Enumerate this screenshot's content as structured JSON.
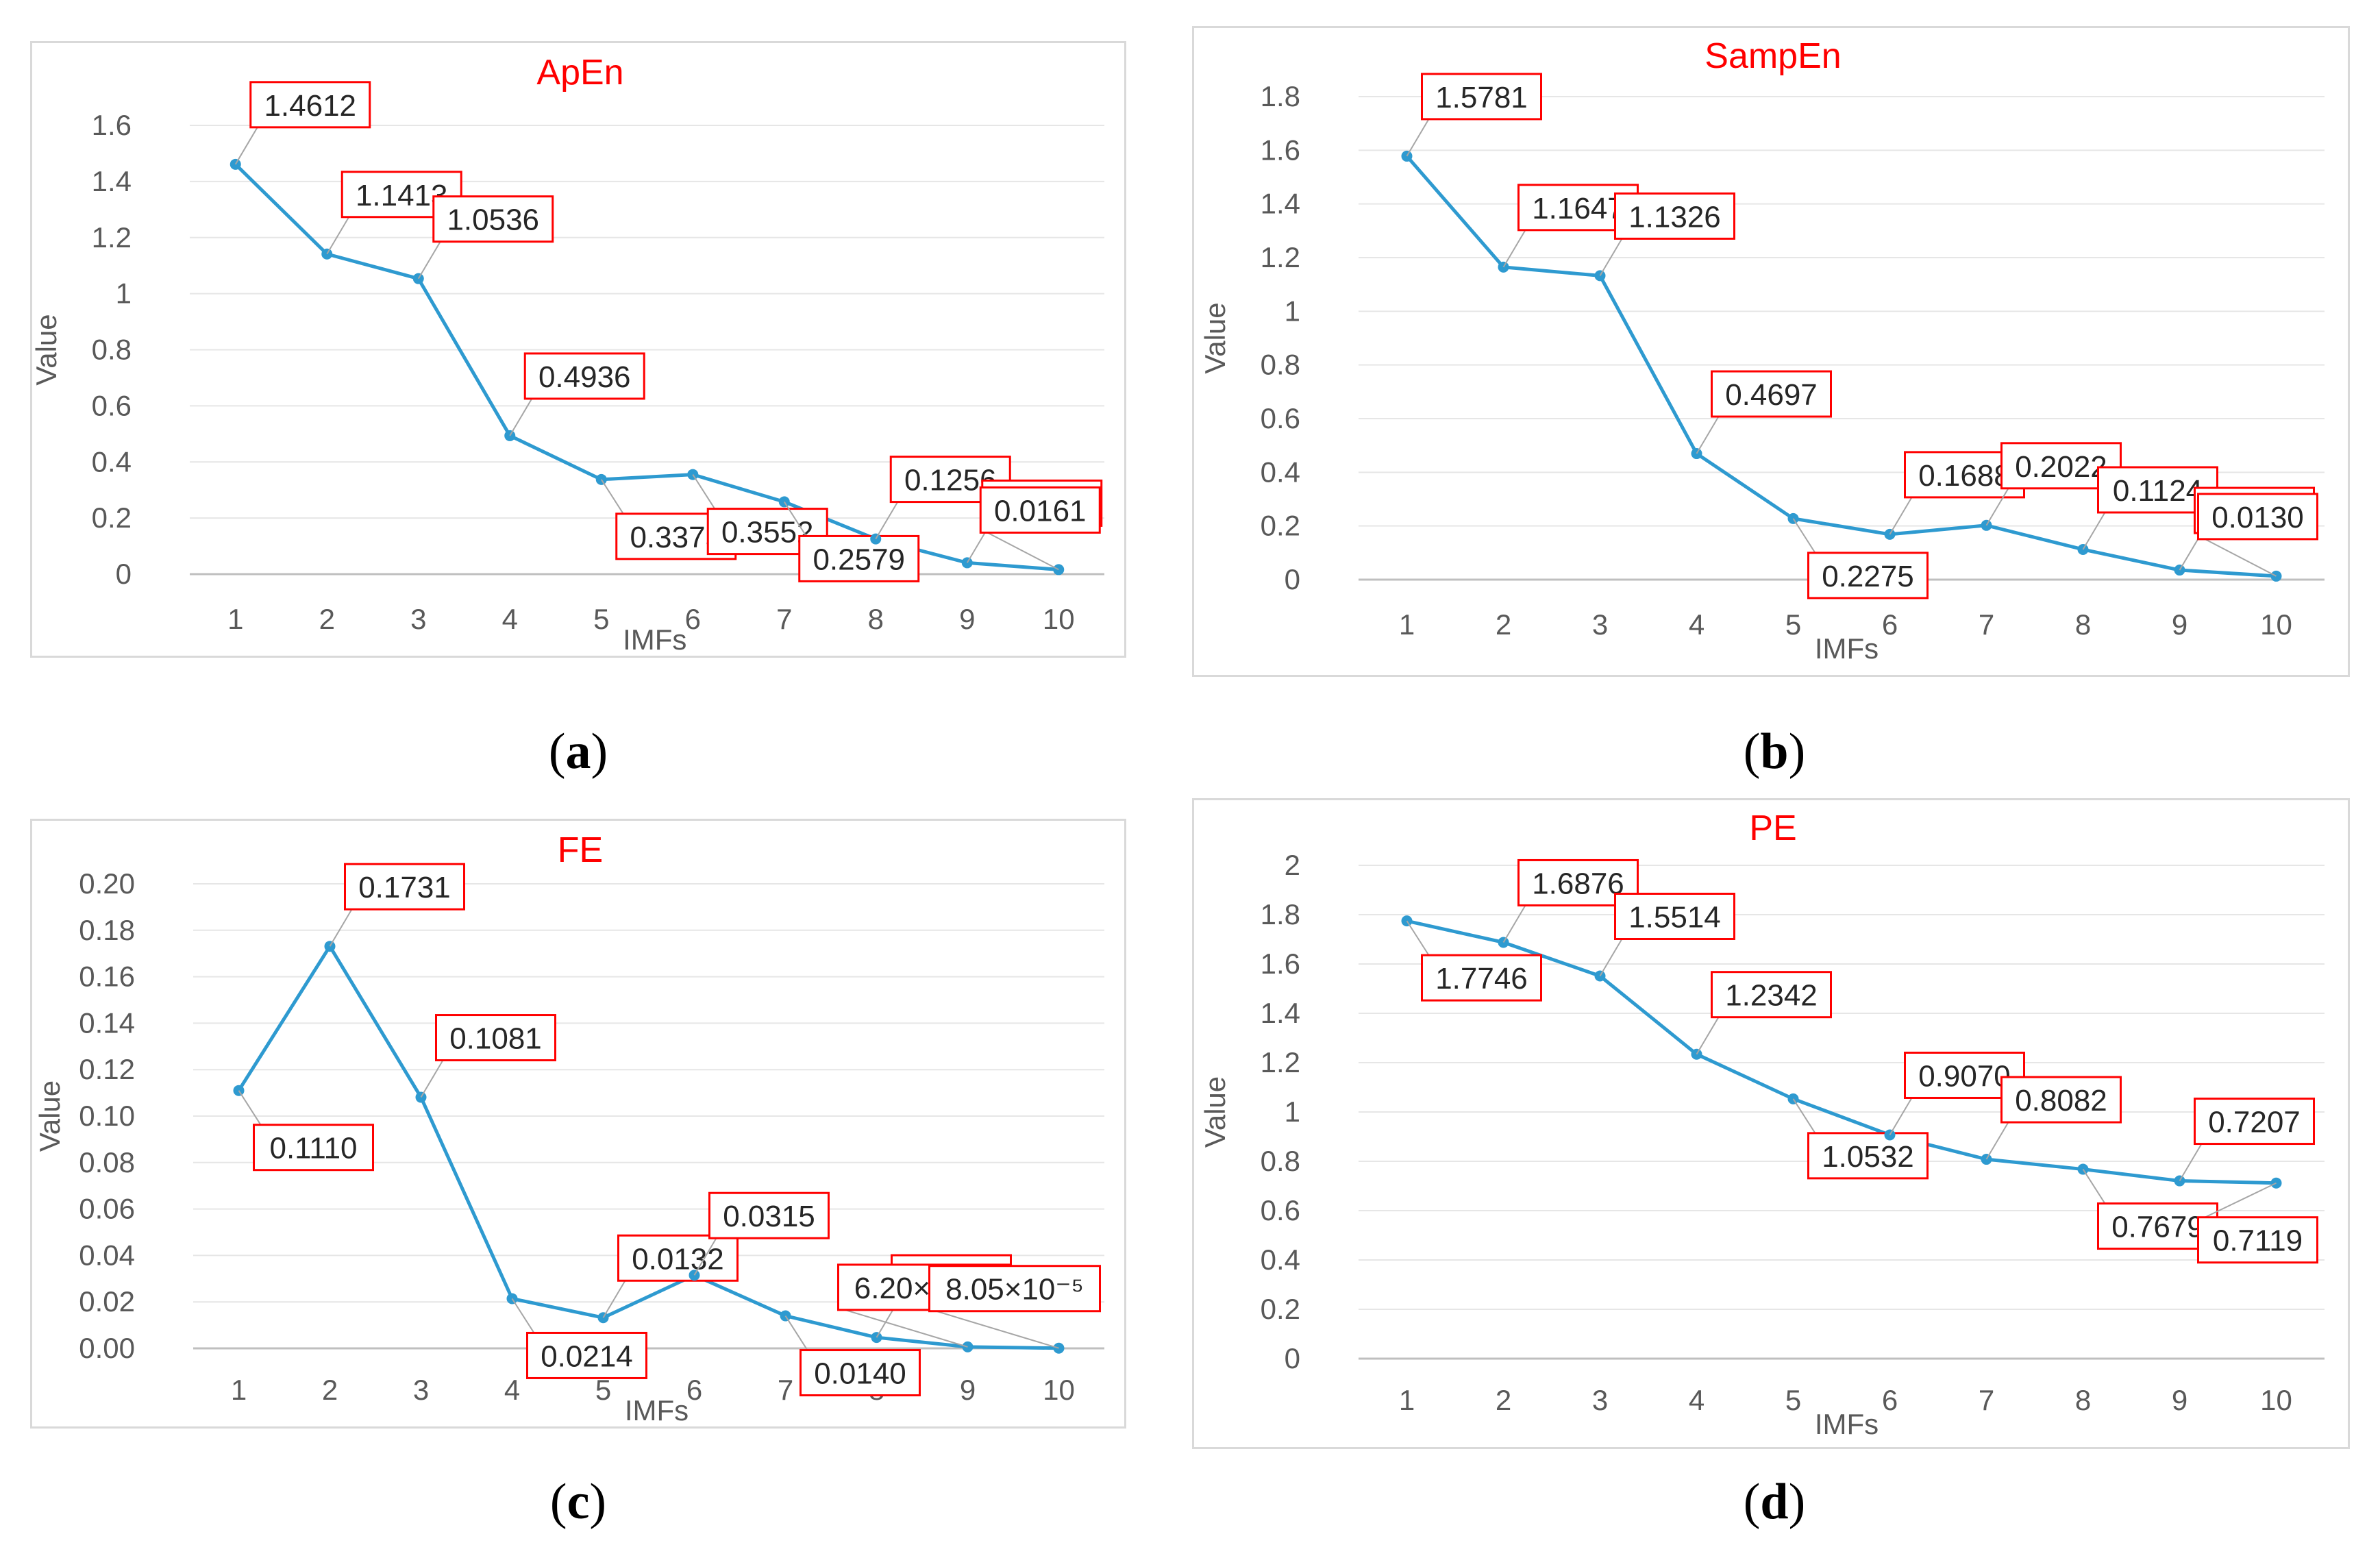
{
  "figure": {
    "captions": [
      "a",
      "b",
      "c",
      "d"
    ]
  },
  "chart_data": [
    {
      "type": "line",
      "title": "ApEn",
      "xlabel": "IMFs",
      "ylabel": "Value",
      "categories": [
        "1",
        "2",
        "3",
        "4",
        "5",
        "6",
        "7",
        "8",
        "9",
        "10"
      ],
      "values": [
        1.4612,
        1.1413,
        1.0536,
        0.4936,
        0.3375,
        0.3552,
        0.2579,
        0.1256,
        0.0405,
        0.0161
      ],
      "data_labels": [
        "1.4612",
        "1.1413",
        "1.0536",
        "0.4936",
        "0.3375",
        "0.3552",
        "0.2579",
        "0.1256",
        "0.0405",
        "0.0161"
      ],
      "label_side": [
        "above",
        "above",
        "above",
        "above",
        "below",
        "below",
        "below",
        "above",
        "above",
        "above"
      ],
      "ylim": [
        0,
        1.6
      ],
      "yticks": [
        "0",
        "0.2",
        "0.4",
        "0.6",
        "0.8",
        "1",
        "1.2",
        "1.4",
        "1.6"
      ],
      "ytick_values": [
        0,
        0.2,
        0.4,
        0.6,
        0.8,
        1,
        1.2,
        1.4,
        1.6
      ],
      "grid": true,
      "line_color": "#2e9ad0",
      "title_color": "#ff0000",
      "label_border_color": "#ff0000"
    },
    {
      "type": "line",
      "title": "SampEn",
      "xlabel": "IMFs",
      "ylabel": "Value",
      "categories": [
        "1",
        "2",
        "3",
        "4",
        "5",
        "6",
        "7",
        "8",
        "9",
        "10"
      ],
      "values": [
        1.5781,
        1.1647,
        1.1326,
        0.4697,
        0.2275,
        0.1688,
        0.2022,
        0.1124,
        0.0356,
        0.013
      ],
      "data_labels": [
        "1.5781",
        "1.1647",
        "1.1326",
        "0.4697",
        "0.2275",
        "0.1688",
        "0.2022",
        "0.1124",
        "0.0356",
        "0.0130"
      ],
      "label_side": [
        "above",
        "above",
        "above",
        "above",
        "below",
        "above",
        "above",
        "above",
        "above",
        "above"
      ],
      "ylim": [
        0,
        1.8
      ],
      "yticks": [
        "0",
        "0.2",
        "0.4",
        "0.6",
        "0.8",
        "1",
        "1.2",
        "1.4",
        "1.6",
        "1.8"
      ],
      "ytick_values": [
        0,
        0.2,
        0.4,
        0.6,
        0.8,
        1,
        1.2,
        1.4,
        1.6,
        1.8
      ],
      "grid": true,
      "line_color": "#2e9ad0",
      "title_color": "#ff0000",
      "label_border_color": "#ff0000"
    },
    {
      "type": "line",
      "title": "FE",
      "xlabel": "IMFs",
      "ylabel": "Value",
      "categories": [
        "1",
        "2",
        "3",
        "4",
        "5",
        "6",
        "7",
        "8",
        "9",
        "10"
      ],
      "values": [
        0.111,
        0.1731,
        0.1081,
        0.0214,
        0.0132,
        0.0315,
        0.014,
        0.0047,
        0.00062,
        8.05e-05
      ],
      "data_labels": [
        "0.1110",
        "0.1731",
        "0.1081",
        "0.0214",
        "0.0132",
        "0.0315",
        "0.0140",
        "0.0047",
        "6.20×10⁻⁴",
        "8.05×10⁻⁵"
      ],
      "label_side": [
        "below",
        "above",
        "above",
        "below",
        "above",
        "above",
        "below",
        "above",
        "above",
        "above"
      ],
      "ylim": [
        0,
        0.2
      ],
      "yticks": [
        "0.00",
        "0.02",
        "0.04",
        "0.06",
        "0.08",
        "0.10",
        "0.12",
        "0.14",
        "0.16",
        "0.18",
        "0.20"
      ],
      "ytick_values": [
        0,
        0.02,
        0.04,
        0.06,
        0.08,
        0.1,
        0.12,
        0.14,
        0.16,
        0.18,
        0.2
      ],
      "grid": true,
      "line_color": "#2e9ad0",
      "title_color": "#ff0000",
      "label_border_color": "#ff0000"
    },
    {
      "type": "line",
      "title": "PE",
      "xlabel": "IMFs",
      "ylabel": "Value",
      "categories": [
        "1",
        "2",
        "3",
        "4",
        "5",
        "6",
        "7",
        "8",
        "9",
        "10"
      ],
      "values": [
        1.7746,
        1.6876,
        1.5514,
        1.2342,
        1.0532,
        0.907,
        0.8082,
        0.7679,
        0.7207,
        0.7119
      ],
      "data_labels": [
        "1.7746",
        "1.6876",
        "1.5514",
        "1.2342",
        "1.0532",
        "0.9070",
        "0.8082",
        "0.7679",
        "0.7207",
        "0.7119"
      ],
      "label_side": [
        "below",
        "above",
        "above",
        "above",
        "below",
        "above",
        "above",
        "below",
        "above",
        "below"
      ],
      "ylim": [
        0,
        2
      ],
      "yticks": [
        "0",
        "0.2",
        "0.4",
        "0.6",
        "0.8",
        "1",
        "1.2",
        "1.4",
        "1.6",
        "1.8",
        "2"
      ],
      "ytick_values": [
        0,
        0.2,
        0.4,
        0.6,
        0.8,
        1,
        1.2,
        1.4,
        1.6,
        1.8,
        2
      ],
      "grid": true,
      "line_color": "#2e9ad0",
      "title_color": "#ff0000",
      "label_border_color": "#ff0000"
    }
  ]
}
